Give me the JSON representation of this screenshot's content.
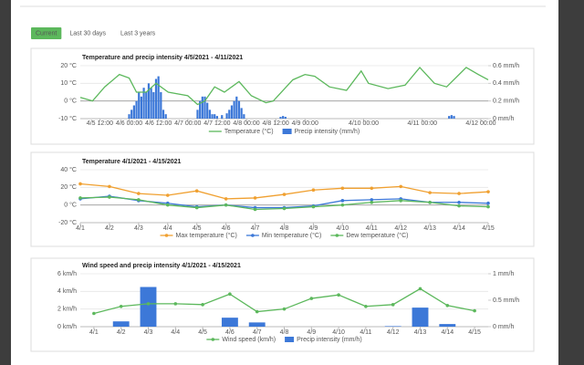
{
  "tabs": [
    "Current",
    "Last 30 days",
    "Last 3 years"
  ],
  "active_tab": 0,
  "chart_data": [
    {
      "type": "combo",
      "title": "Temperature and precip intensity 4/5/2021 - 4/11/2021",
      "x": [
        4,
        9,
        14,
        20,
        24,
        27,
        31,
        35,
        40,
        48,
        52,
        55,
        59,
        63,
        69,
        74,
        80,
        83,
        91,
        96,
        100,
        106,
        113,
        119,
        122,
        130,
        137,
        143,
        149,
        154,
        162,
        167,
        171
      ],
      "xlim": [
        4,
        171
      ],
      "xticks": [
        {
          "value": 12,
          "label": "4/5 12:00"
        },
        {
          "value": 24,
          "label": "4/6 00:00"
        },
        {
          "value": 36,
          "label": "4/6 12:00"
        },
        {
          "value": 48,
          "label": "4/7 00:00"
        },
        {
          "value": 60,
          "label": "4/7 12:00"
        },
        {
          "value": 72,
          "label": "4/8 00:00"
        },
        {
          "value": 84,
          "label": "4/8 12:00"
        },
        {
          "value": 96,
          "label": "4/9 00:00"
        },
        {
          "value": 120,
          "label": "4/10 00:00"
        },
        {
          "value": 144,
          "label": "4/11 00:00"
        },
        {
          "value": 168,
          "label": "4/12 00:00"
        }
      ],
      "ylim": [
        -10,
        20
      ],
      "yticks": [
        {
          "value": -10,
          "label": "-10 °C"
        },
        {
          "value": 0,
          "label": "0 °C"
        },
        {
          "value": 10,
          "label": "10 °C"
        },
        {
          "value": 20,
          "label": "20 °C"
        }
      ],
      "y2lim": [
        0,
        0.6
      ],
      "y2ticks": [
        {
          "value": 0,
          "label": "0 mm/h"
        },
        {
          "value": 0.2,
          "label": "0.2 mm/h"
        },
        {
          "value": 0.4,
          "label": "0.4 mm/h"
        },
        {
          "value": 0.6,
          "label": "0.6 mm/h"
        }
      ],
      "grid": true,
      "legend": "bottom",
      "series": [
        {
          "name": "Temperature (°C)",
          "type": "line",
          "color": "#5cb85c",
          "values": [
            2,
            0,
            8,
            15,
            13,
            5,
            5,
            10,
            5,
            3,
            -2,
            0,
            8,
            5,
            11,
            3,
            -1,
            0,
            12,
            15,
            14,
            8,
            6,
            17,
            10,
            7,
            9,
            19,
            10,
            8,
            19,
            15,
            12
          ]
        },
        {
          "name": "Precip intensity (mm/h)",
          "type": "bar",
          "axis": "y2",
          "color": "#3c78d8",
          "x": [
            24,
            25,
            26,
            27,
            28,
            29,
            30,
            31,
            32,
            33,
            34,
            35,
            36,
            37,
            38,
            39,
            52,
            53,
            54,
            55,
            56,
            57,
            58,
            59,
            60,
            62,
            64,
            65,
            66,
            67,
            68,
            69,
            70,
            71,
            86,
            87,
            88,
            155,
            156,
            157
          ],
          "values": [
            0.05,
            0.1,
            0.15,
            0.2,
            0.3,
            0.25,
            0.35,
            0.3,
            0.4,
            0.35,
            0.3,
            0.45,
            0.48,
            0.3,
            0.1,
            0.05,
            0.1,
            0.2,
            0.25,
            0.25,
            0.18,
            0.1,
            0.05,
            0.05,
            0.03,
            0.04,
            0.06,
            0.1,
            0.15,
            0.2,
            0.25,
            0.2,
            0.12,
            0.05,
            0.02,
            0.03,
            0.02,
            0.03,
            0.04,
            0.03
          ]
        }
      ]
    },
    {
      "type": "line",
      "title": "Temperature 4/1/2021 - 4/15/2021",
      "categories": [
        "4/1",
        "4/2",
        "4/3",
        "4/4",
        "4/5",
        "4/6",
        "4/7",
        "4/8",
        "4/9",
        "4/10",
        "4/11",
        "4/12",
        "4/13",
        "4/14",
        "4/15"
      ],
      "ylim": [
        -20,
        40
      ],
      "yticks": [
        {
          "value": -20,
          "label": "-20 °C"
        },
        {
          "value": 0,
          "label": "0 °C"
        },
        {
          "value": 20,
          "label": "20 °C"
        },
        {
          "value": 40,
          "label": "40 °C"
        }
      ],
      "grid": true,
      "legend": "bottom",
      "markers": true,
      "series": [
        {
          "name": "Max temperature (°C)",
          "color": "#f0a030",
          "values": [
            24,
            21,
            13,
            11,
            16,
            7,
            8,
            12,
            17,
            19,
            19,
            21,
            14,
            13,
            15
          ]
        },
        {
          "name": "Min temperature (°C)",
          "color": "#3c78d8",
          "values": [
            7,
            10,
            5,
            2,
            -2,
            0,
            -3,
            -3,
            -1,
            5,
            6,
            7,
            3,
            3,
            2
          ]
        },
        {
          "name": "Dew temperature (°C)",
          "color": "#5cb85c",
          "values": [
            8,
            9,
            6,
            0,
            -3,
            0,
            -5,
            -4,
            -2,
            0,
            3,
            5,
            3,
            -1,
            -2
          ]
        }
      ]
    },
    {
      "type": "combo",
      "title": "Wind speed and precip intensity 4/1/2021 - 4/15/2021",
      "categories": [
        "4/1",
        "4/2",
        "4/3",
        "4/4",
        "4/5",
        "4/6",
        "4/7",
        "4/8",
        "4/9",
        "4/10",
        "4/11",
        "4/12",
        "4/13",
        "4/14",
        "4/15"
      ],
      "ylim": [
        0,
        6
      ],
      "yticks": [
        {
          "value": 0,
          "label": "0 km/h"
        },
        {
          "value": 2,
          "label": "2 km/h"
        },
        {
          "value": 4,
          "label": "4 km/h"
        },
        {
          "value": 6,
          "label": "6 km/h"
        }
      ],
      "y2lim": [
        0,
        1
      ],
      "y2ticks": [
        {
          "value": 0,
          "label": "0 mm/h"
        },
        {
          "value": 0.5,
          "label": "0.5 mm/h"
        },
        {
          "value": 1,
          "label": "1 mm/h"
        }
      ],
      "grid": true,
      "legend": "bottom",
      "markers": true,
      "series": [
        {
          "name": "Wind speed (km/h)",
          "type": "line",
          "color": "#5cb85c",
          "values": [
            1.5,
            2.3,
            2.6,
            2.6,
            2.5,
            3.7,
            1.7,
            2.0,
            3.2,
            3.6,
            2.3,
            2.5,
            4.3,
            2.4,
            1.8
          ]
        },
        {
          "name": "Precip intensity (mm/h)",
          "type": "bar",
          "axis": "y2",
          "color": "#3c78d8",
          "values": [
            0,
            0.1,
            0.75,
            0,
            0,
            0.17,
            0.08,
            0,
            0,
            0,
            0,
            0.01,
            0.36,
            0.05,
            0
          ]
        }
      ]
    }
  ]
}
